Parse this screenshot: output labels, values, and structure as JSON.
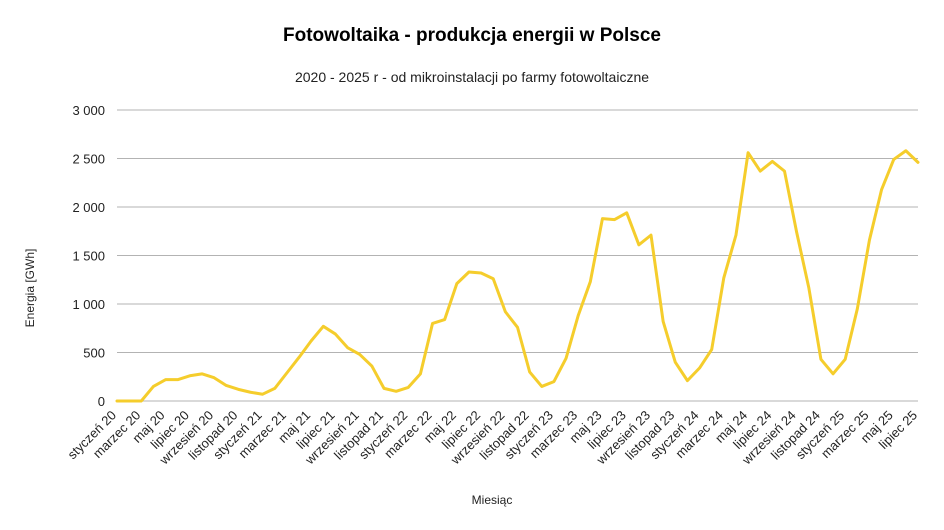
{
  "chart_data": {
    "type": "line",
    "title": "Fotowoltaika - produkcja energii w Polsce",
    "subtitle": "2020 - 2025 r - od mikroinstalacji po farmy fotowoltaiczne",
    "xlabel": "Miesiąc",
    "ylabel": "Energia [GWh]",
    "ylim": [
      0,
      3000
    ],
    "yticks": [
      0,
      500,
      1000,
      1500,
      2000,
      2500,
      3000
    ],
    "ytick_labels": [
      "0",
      "500",
      "1 000",
      "1 500",
      "2 000",
      "2 500",
      "3 000"
    ],
    "grid": "horizontal",
    "x_tick_labels": [
      "styczeń 20",
      "marzec 20",
      "maj 20",
      "lipiec 20",
      "wrzesień 20",
      "listopad 20",
      "styczeń 21",
      "marzec 21",
      "maj 21",
      "lipiec 21",
      "wrzesień 21",
      "listopad 21",
      "styczeń 22",
      "marzec 22",
      "maj 22",
      "lipiec 22",
      "wrzesień 22",
      "listopad 22",
      "styczeń 23",
      "marzec 23",
      "maj 23",
      "lipiec 23",
      "wrzesień 23",
      "listopad 23",
      "styczeń 24",
      "marzec 24",
      "maj 24",
      "lipiec 24",
      "wrzesień 24",
      "listopad 24",
      "styczeń 25",
      "marzec 25",
      "maj 25",
      "lipiec 25"
    ],
    "color": "#f5cd2c",
    "series": [
      {
        "values": [
          0,
          0,
          0,
          150,
          220,
          220,
          260,
          280,
          240,
          160,
          120,
          90,
          70,
          130,
          290,
          450,
          620,
          770,
          690,
          550,
          480,
          360,
          130,
          100,
          140,
          280,
          800,
          840,
          1210,
          1330,
          1320,
          1260,
          920,
          760,
          300,
          150,
          200,
          440,
          880,
          1230,
          1880,
          1870,
          1940,
          1610,
          1710,
          820,
          400,
          210,
          340,
          530,
          1270,
          1710,
          2560,
          2370,
          2470,
          2370,
          1740,
          1170,
          430,
          280,
          430,
          950,
          1660,
          2180,
          2490,
          2580,
          2460
        ]
      }
    ]
  }
}
